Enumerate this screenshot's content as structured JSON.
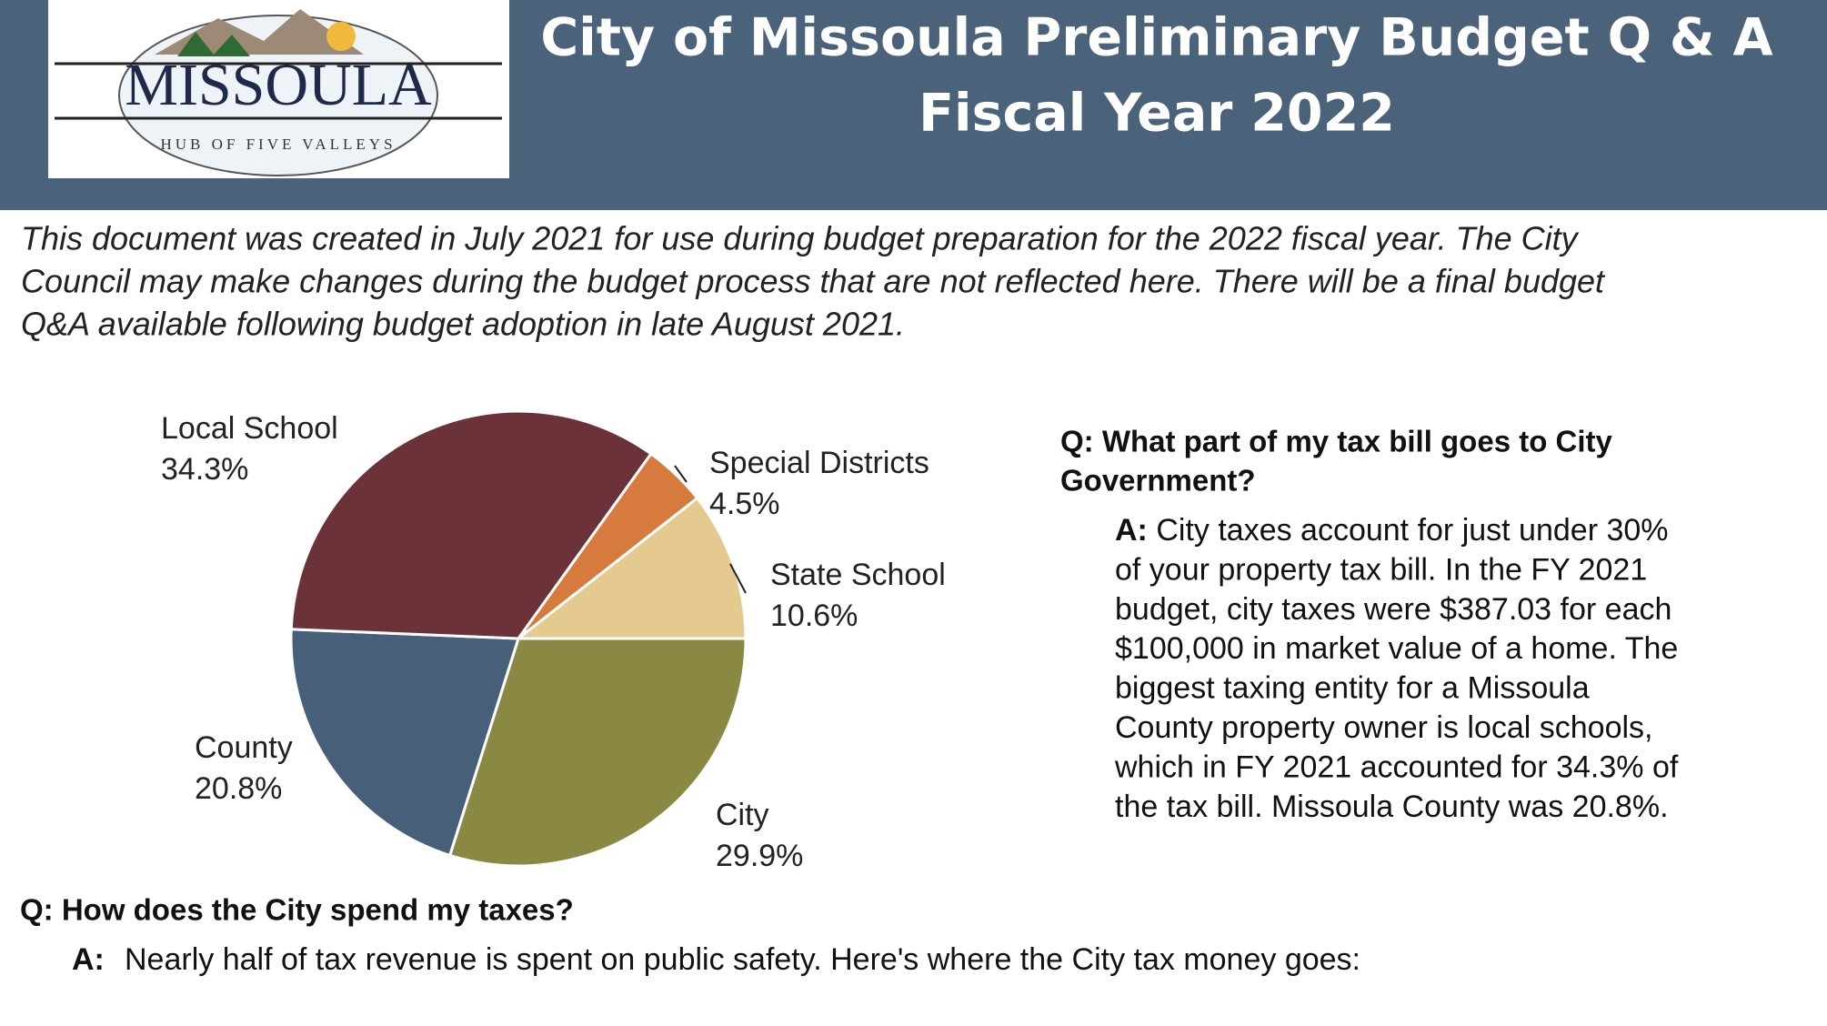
{
  "header": {
    "logo_name": "MISSOULA",
    "logo_motto": "HUB OF FIVE VALLEYS",
    "title_lines": [
      "City of Missoula Preliminary Budget Q & A",
      "Fiscal Year 2022"
    ]
  },
  "intro_lines": [
    "This document was created in July 2021 for use during budget preparation for the 2022 fiscal year.  The City",
    "Council may make changes during the budget process that are not reflected here.  There will be a final budget",
    "Q&A available following budget adoption in late August 2021."
  ],
  "chart_data": {
    "type": "pie",
    "categories": [
      "City",
      "County",
      "Local School",
      "Special Districts",
      "State School"
    ],
    "values": [
      29.9,
      20.8,
      34.3,
      4.5,
      10.6
    ],
    "value_labels": [
      "29.9%",
      "20.8%",
      "34.3%",
      "4.5%",
      "10.6%"
    ],
    "colors": [
      "#8a8944",
      "#475f78",
      "#6b3339",
      "#d77a3d",
      "#e4ca8e"
    ]
  },
  "qa1": {
    "question_lines": [
      "Q: What part of my tax bill goes to City",
      "Government?"
    ],
    "answer_prefix": "A:",
    "answer_lines": [
      " City taxes account for just under 30%",
      "of your property tax bill.  In the FY 2021",
      "budget, city taxes were $387.03 for each",
      "$100,000 in market value of a home. The",
      "biggest taxing entity for a Missoula",
      "County property owner is local schools,",
      "which in FY 2021 accounted for 34.3% of",
      "the tax bill. Missoula County was 20.8%."
    ]
  },
  "qa2": {
    "question": "Q: How does the City spend my taxes?",
    "answer_prefix": "A:",
    "answer": "Nearly half of tax revenue is spent on public safety.  Here's where the City tax money goes:"
  }
}
